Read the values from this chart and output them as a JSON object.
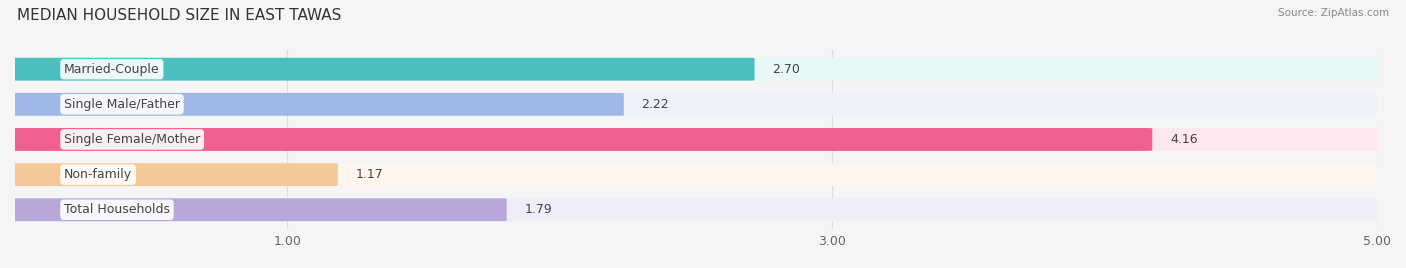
{
  "title": "MEDIAN HOUSEHOLD SIZE IN EAST TAWAS",
  "source": "Source: ZipAtlas.com",
  "categories": [
    "Married-Couple",
    "Single Male/Father",
    "Single Female/Mother",
    "Non-family",
    "Total Households"
  ],
  "values": [
    2.7,
    2.22,
    4.16,
    1.17,
    1.79
  ],
  "bar_colors": [
    "#4bbfbf",
    "#a0b8e8",
    "#f06090",
    "#f5c89a",
    "#b8a8d8"
  ],
  "bar_bg_colors": [
    "#e8f8f8",
    "#eef1f8",
    "#fde8f0",
    "#fdf5ee",
    "#f0ecf8"
  ],
  "xlim": [
    0,
    5.0
  ],
  "xticks": [
    1.0,
    3.0,
    5.0
  ],
  "xtick_labels": [
    "1.00",
    "3.00",
    "5.00"
  ],
  "value_fontsize": 9,
  "label_fontsize": 9,
  "title_fontsize": 11,
  "bar_height": 0.62,
  "background_color": "#f5f5f5",
  "label_bg_color": "#ffffff"
}
